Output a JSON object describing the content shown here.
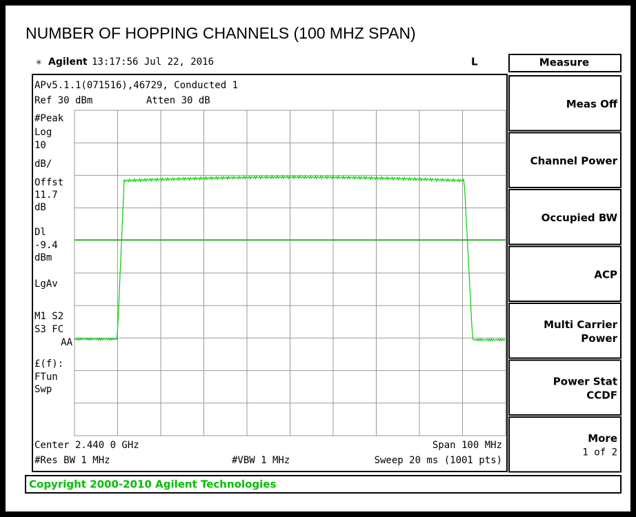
{
  "title": "NUMBER OF HOPPING CHANNELS (100 MHZ SPAN)",
  "header": {
    "brand": "Agilent",
    "time": "13:17:56  Jul 22, 2016",
    "flag": "L"
  },
  "screen": {
    "info": "APv5.1.1(071516),46729, Conducted 1",
    "ref": "Ref 30 dBm",
    "atten": "Atten 30 dB",
    "left_labels": [
      "#Peak",
      "Log",
      "10",
      "dB/",
      "Offst",
      "11.7",
      "dB",
      "Dl",
      "-9.4",
      "dBm",
      "LgAv",
      "M1  S2",
      "S3  FC",
      "AA",
      "£(f):",
      "FTun",
      "Swp"
    ],
    "center": "Center 2.440 0 GHz",
    "span": "Span 100 MHz",
    "rbw": "#Res BW 1 MHz",
    "vbw": "#VBW 1 MHz",
    "sweep": "Sweep 20 ms (1001 pts)"
  },
  "menu": {
    "title": "Measure",
    "softkeys": [
      [
        "Meas Off"
      ],
      [
        "Channel Power"
      ],
      [
        "Occupied BW"
      ],
      [
        "ACP"
      ],
      [
        "Multi Carrier",
        "Power"
      ],
      [
        "Power Stat",
        "CCDF"
      ],
      [
        "More",
        "1 of 2"
      ]
    ]
  },
  "copyright": "Copyright 2000-2010 Agilent Technologies"
}
